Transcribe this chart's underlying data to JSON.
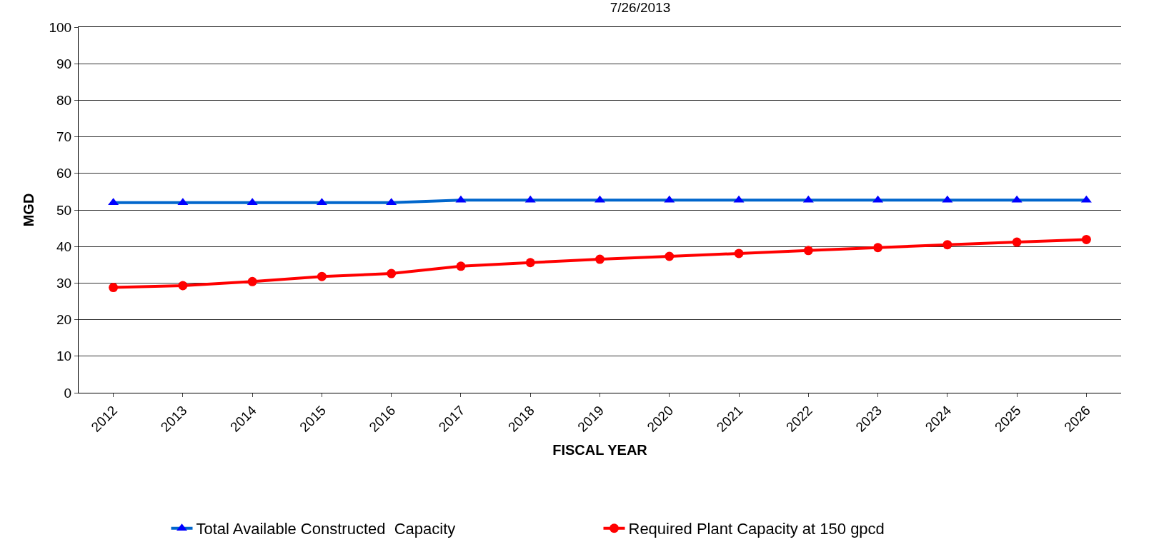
{
  "chart_data": {
    "type": "line",
    "title": "7/26/2013",
    "xlabel": "FISCAL YEAR",
    "ylabel": "MGD",
    "categories": [
      "2012",
      "2013",
      "2014",
      "2015",
      "2016",
      "2017",
      "2018",
      "2019",
      "2020",
      "2021",
      "2022",
      "2023",
      "2024",
      "2025",
      "2026"
    ],
    "series": [
      {
        "name": "Total Available Constructed  Capacity",
        "color": "#0066cc",
        "marker": "triangle",
        "values": [
          52,
          52,
          52,
          52,
          52,
          52.7,
          52.7,
          52.7,
          52.7,
          52.7,
          52.7,
          52.7,
          52.7,
          52.7,
          52.7
        ]
      },
      {
        "name": "Required Plant Capacity at 150 gpcd",
        "color": "#ff0000",
        "marker": "circle",
        "values": [
          28.8,
          29.3,
          30.4,
          31.8,
          32.6,
          34.6,
          35.6,
          36.5,
          37.3,
          38.1,
          38.9,
          39.7,
          40.5,
          41.2,
          41.9
        ]
      }
    ],
    "ylim": [
      0,
      100
    ],
    "yticks": [
      0,
      10,
      20,
      30,
      40,
      50,
      60,
      70,
      80,
      90,
      100
    ],
    "grid": "y",
    "legend": "bottom",
    "line_style": "solid"
  }
}
